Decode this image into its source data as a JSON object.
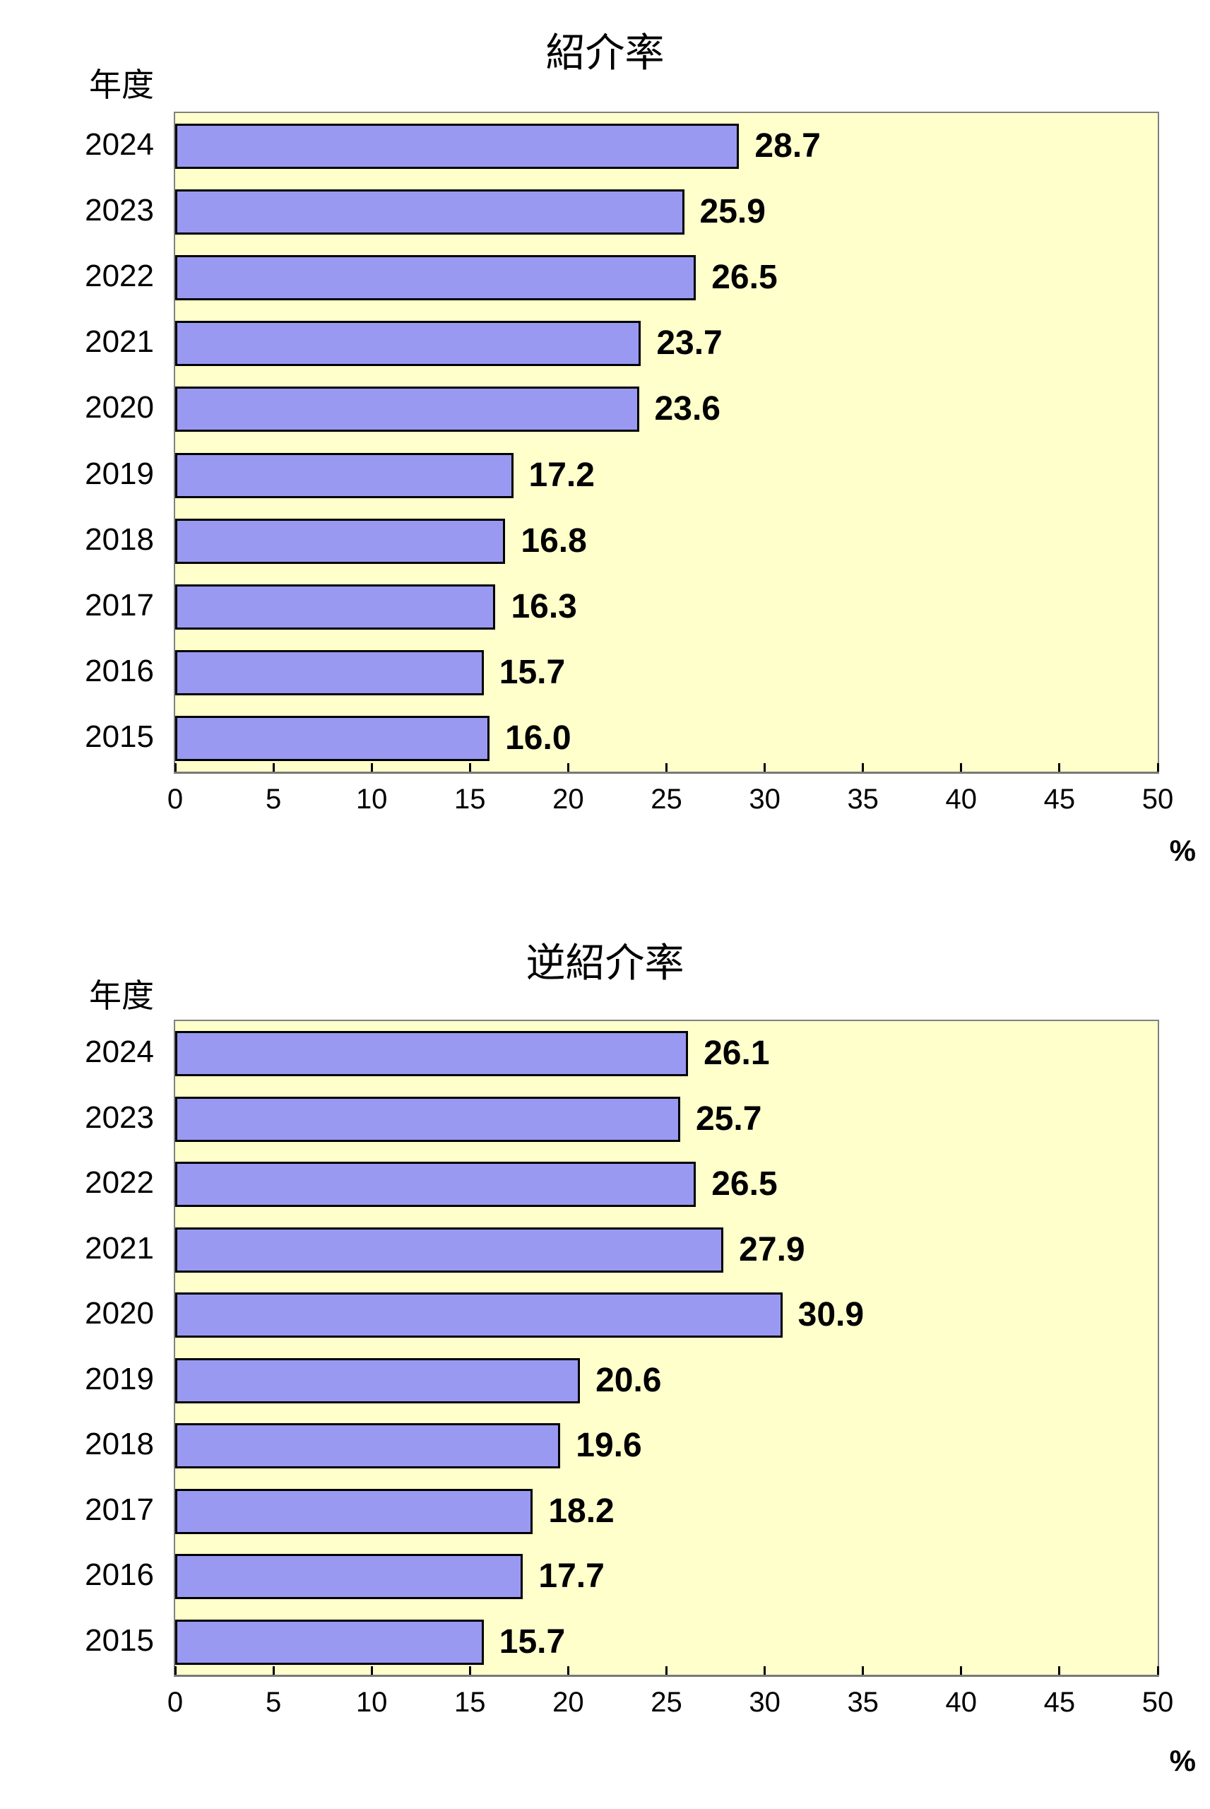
{
  "colors": {
    "bar_fill": "#9999F2",
    "bar_border": "#000000",
    "plot_background": "#FFFFCC",
    "plot_frame": "#808080",
    "text": "#000000",
    "page_background": "#FFFFFF"
  },
  "chart_data": [
    {
      "type": "bar",
      "orientation": "horizontal",
      "title": "紹介率",
      "category_axis_label": "年度",
      "unit_label": "%",
      "categories": [
        "2024",
        "2023",
        "2022",
        "2021",
        "2020",
        "2019",
        "2018",
        "2017",
        "2016",
        "2015"
      ],
      "values": [
        28.7,
        25.9,
        26.5,
        23.7,
        23.6,
        17.2,
        16.8,
        16.3,
        15.7,
        16.0
      ],
      "xlim": [
        0,
        50
      ],
      "x_ticks": [
        0,
        5,
        10,
        15,
        20,
        25,
        30,
        35,
        40,
        45,
        50
      ],
      "value_labels_shown": true,
      "grid": false,
      "legend": "none"
    },
    {
      "type": "bar",
      "orientation": "horizontal",
      "title": "逆紹介率",
      "category_axis_label": "年度",
      "unit_label": "%",
      "categories": [
        "2024",
        "2023",
        "2022",
        "2021",
        "2020",
        "2019",
        "2018",
        "2017",
        "2016",
        "2015"
      ],
      "values": [
        26.1,
        25.7,
        26.5,
        27.9,
        30.9,
        20.6,
        19.6,
        18.2,
        17.7,
        15.7
      ],
      "xlim": [
        0,
        50
      ],
      "x_ticks": [
        0,
        5,
        10,
        15,
        20,
        25,
        30,
        35,
        40,
        45,
        50
      ],
      "value_labels_shown": true,
      "grid": false,
      "legend": "none"
    }
  ]
}
